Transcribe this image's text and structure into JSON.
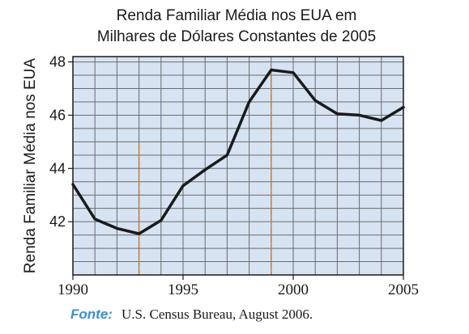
{
  "chart_data": {
    "type": "line",
    "title": [
      "Renda Familiar Média nos EUA em",
      "Milhares de Dólares Constantes de 2005"
    ],
    "ylabel": "Renda Familiar Média nos EUA",
    "xlabel": "",
    "xlim": [
      1990,
      2005
    ],
    "ylim": [
      40,
      48.2
    ],
    "x_ticks": [
      "1990",
      "1995",
      "2000",
      "2005"
    ],
    "y_ticks": [
      "42",
      "44",
      "46",
      "48"
    ],
    "grid": true,
    "series": [
      {
        "x": [
          1990,
          1991,
          1992,
          1993,
          1994,
          1995,
          1996,
          1997,
          1998,
          1999,
          2000,
          2001,
          2002,
          2003,
          2004,
          2005
        ],
        "values": [
          43.4,
          42.1,
          41.75,
          41.55,
          42.05,
          43.35,
          43.95,
          44.5,
          46.5,
          47.7,
          47.6,
          46.55,
          46.05,
          46.0,
          45.8,
          46.3
        ]
      }
    ],
    "reference_lines": [
      1993,
      1999
    ]
  },
  "source": {
    "label": "Fonte:",
    "text": "U.S. Census Bureau, August 2006."
  },
  "colors": {
    "plot_background": "#d6e3f2",
    "grid": "#6b6b6b",
    "line": "#1a1a1a",
    "reference_line": "#e07b1a",
    "source_label": "#3a8fd0"
  }
}
